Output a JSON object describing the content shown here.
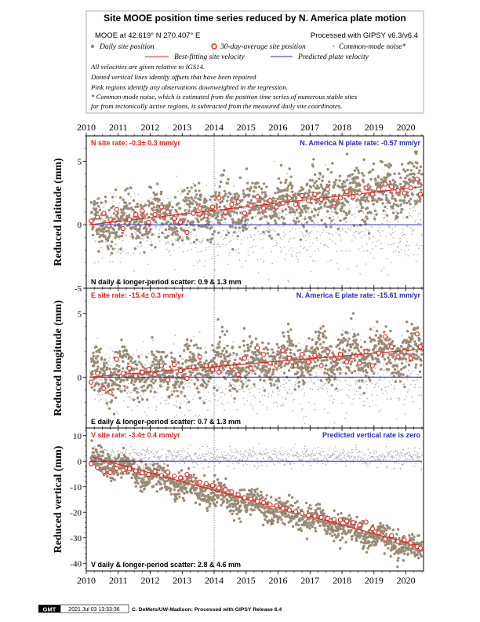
{
  "page": {
    "title": "Site MOOE position time series reduced by N. America plate motion",
    "site_line": "MOOE at 42.619° N 270.407° E",
    "processed_line": "Processed with GIPSY v6.3/v6.4",
    "legend": {
      "daily": "Daily site position",
      "avg30": "30-day-average site position",
      "cm_noise": "Common-mode noise*",
      "best_fit": "Best-fitting site velocity",
      "predicted": "Predicted plate velocity"
    },
    "notes": [
      "All velocities are given relative to IGS14.",
      "Dotted vertical lines identify offsets that have been repaired",
      "Pink regions identify any observations downweighted in the regression.",
      "* Common-mode noise, which is estimated from the position time series of numerous stable sites",
      "far from tectonically active regions, is subtracted from the measured daily site coordinates."
    ],
    "footer": {
      "gmt_logo": "GMT",
      "timestamp": "2021 Jul 03 13:33:36",
      "credit": "C. DeMets/UW-Madison: Processed with GIPSY Release 6.4"
    },
    "colors": {
      "daily": "#9a8a74",
      "avg30": "#e8231e",
      "best_fit": "#e8231e",
      "predicted": "#2929c8",
      "cm_noise": "#b0b0b0"
    }
  },
  "chart_data": [
    {
      "type": "scatter",
      "ylabel": "Reduced latitude (mm)",
      "x_ticks": [
        2010,
        2011,
        2012,
        2013,
        2014,
        2015,
        2016,
        2017,
        2018,
        2019,
        2020
      ],
      "xlim": [
        2010.0,
        2020.55
      ],
      "ylim": [
        -5,
        7
      ],
      "y_ticks": [
        -5,
        0,
        5
      ],
      "offset_line_x": 2014.0,
      "rate_label": "N site rate:  -0.3± 0.3 mm/yr",
      "plate_label": "N. America N plate rate:  -0.57 mm/yr",
      "scatter_label": "N daily & longer-period scatter:   0.9 &   1.3 mm",
      "best_fit": {
        "x": [
          2010.1,
          2020.5
        ],
        "y": [
          0.0,
          3.0
        ]
      },
      "predicted": {
        "x": [
          2010.1,
          2020.5
        ],
        "y": [
          0.0,
          0.0
        ]
      },
      "avg30": {
        "x": [
          2010.15,
          2010.35,
          2010.55,
          2010.75,
          2010.95,
          2011.15,
          2011.35,
          2011.55,
          2011.75,
          2011.95,
          2012.15,
          2012.35,
          2012.55,
          2012.75,
          2012.95,
          2013.15,
          2013.35,
          2013.55,
          2013.75,
          2013.95,
          2014.15,
          2014.35,
          2014.55,
          2014.75,
          2014.95,
          2015.15,
          2015.35,
          2015.55,
          2015.75,
          2015.95,
          2016.15,
          2016.35,
          2016.55,
          2016.75,
          2016.95,
          2017.15,
          2017.35,
          2017.55,
          2017.75,
          2017.95,
          2018.15,
          2018.35,
          2018.55,
          2018.75,
          2018.95,
          2019.15,
          2019.35,
          2019.55,
          2019.75,
          2019.95,
          2020.15,
          2020.35,
          2020.45
        ],
        "y": [
          0.3,
          0.6,
          0.9,
          0.4,
          1.2,
          -0.3,
          0.4,
          0.8,
          1.1,
          0.2,
          0.8,
          1.4,
          1.0,
          0.5,
          0.2,
          -0.6,
          0.9,
          1.3,
          0.7,
          1.4,
          2.1,
          1.0,
          1.6,
          1.8,
          0.9,
          1.5,
          2.2,
          1.3,
          1.9,
          1.4,
          1.7,
          2.1,
          1.6,
          2.3,
          1.9,
          2.4,
          2.0,
          2.8,
          1.7,
          2.1,
          2.6,
          2.2,
          2.5,
          2.9,
          2.4,
          2.8,
          3.2,
          3.0,
          2.7,
          2.5,
          2.9,
          3.6,
          2.4
        ]
      },
      "daily_model": {
        "a": 0.0,
        "b": 0.288,
        "sd": 1.0,
        "seasonal": 0.5,
        "seed": 11
      },
      "cm_model": {
        "a": -0.3,
        "b": 0.0,
        "sd": 1.6,
        "seed": 21
      }
    },
    {
      "type": "scatter",
      "ylabel": "Reduced longitude (mm)",
      "x_ticks": [
        2010,
        2011,
        2012,
        2013,
        2014,
        2015,
        2016,
        2017,
        2018,
        2019,
        2020
      ],
      "xlim": [
        2010.0,
        2020.55
      ],
      "ylim": [
        -4,
        7
      ],
      "y_ticks": [
        0,
        5
      ],
      "offset_line_x": 2014.0,
      "rate_label": "E site rate:  -15.4± 0.3 mm/yr",
      "plate_label": "N. America E plate rate:  -15.61 mm/yr",
      "scatter_label": "E daily & longer-period scatter:   0.7 &   1.3 mm",
      "best_fit": {
        "x": [
          2010.1,
          2020.5
        ],
        "y": [
          0.0,
          2.2
        ]
      },
      "predicted": {
        "x": [
          2010.1,
          2020.5
        ],
        "y": [
          0.0,
          0.0
        ]
      },
      "avg30": {
        "x": [
          2010.15,
          2010.35,
          2010.55,
          2010.75,
          2010.95,
          2011.15,
          2011.35,
          2011.55,
          2011.75,
          2011.95,
          2012.15,
          2012.35,
          2012.55,
          2012.75,
          2012.95,
          2013.15,
          2013.35,
          2013.55,
          2013.75,
          2013.95,
          2014.15,
          2014.35,
          2014.55,
          2014.75,
          2014.95,
          2015.15,
          2015.35,
          2015.55,
          2015.75,
          2015.95,
          2016.15,
          2016.35,
          2016.55,
          2016.75,
          2016.95,
          2017.15,
          2017.35,
          2017.55,
          2017.75,
          2017.95,
          2018.15,
          2018.35,
          2018.55,
          2018.75,
          2018.95,
          2019.15,
          2019.35,
          2019.55,
          2019.75,
          2019.95,
          2020.15,
          2020.35,
          2020.45
        ],
        "y": [
          -0.4,
          0.3,
          -0.9,
          -1.2,
          1.4,
          0.3,
          0.7,
          0.1,
          0.4,
          0.6,
          0.2,
          0.9,
          -0.2,
          1.0,
          0.5,
          -0.1,
          0.8,
          1.6,
          0.9,
          0.6,
          0.4,
          1.1,
          0.8,
          0.2,
          1.5,
          0.7,
          2.3,
          1.8,
          1.1,
          0.9,
          2.1,
          1.5,
          0.9,
          1.8,
          1.2,
          1.7,
          0.9,
          2.0,
          1.4,
          1.8,
          1.2,
          1.6,
          1.1,
          2.0,
          0.9,
          1.9,
          3.2,
          2.4,
          1.6,
          2.0,
          1.5,
          3.4,
          2.4
        ]
      },
      "daily_model": {
        "a": 0.0,
        "b": 0.212,
        "sd": 0.9,
        "seasonal": 0.6,
        "seed": 33
      },
      "cm_model": {
        "a": -0.5,
        "b": 0.05,
        "sd": 1.5,
        "seed": 44
      }
    },
    {
      "type": "scatter",
      "ylabel": "Reduced vertical (mm)",
      "x_ticks": [
        2010,
        2011,
        2012,
        2013,
        2014,
        2015,
        2016,
        2017,
        2018,
        2019,
        2020
      ],
      "x_tick_labels_bottom": [
        "2010",
        "2011",
        "2012",
        "2013",
        "2014",
        "2015",
        "2016",
        "2017",
        "2018",
        "2019",
        "2020"
      ],
      "xlim": [
        2010.0,
        2020.55
      ],
      "ylim": [
        -43,
        13
      ],
      "y_ticks": [
        -40,
        -30,
        -20,
        -10,
        0,
        10
      ],
      "offset_line_x": 2014.0,
      "rate_label": "V site rate:  -3.4± 0.4 mm/yr",
      "plate_label": "Predicted vertical rate is zero",
      "scatter_label": "V daily & longer-period scatter:   2.8 &   4.6 mm",
      "best_fit": {
        "x": [
          2010.2,
          2020.5
        ],
        "y": [
          1.5,
          -33.5
        ]
      },
      "predicted": {
        "x": [
          2010.1,
          2020.5
        ],
        "y": [
          0.0,
          0.0
        ]
      },
      "avg30": {
        "x": [
          2010.15,
          2010.35,
          2010.55,
          2010.75,
          2010.95,
          2011.15,
          2011.35,
          2011.55,
          2011.75,
          2011.95,
          2012.15,
          2012.35,
          2012.55,
          2012.75,
          2012.95,
          2013.15,
          2013.35,
          2013.55,
          2013.75,
          2013.95,
          2014.15,
          2014.35,
          2014.55,
          2014.75,
          2014.95,
          2015.15,
          2015.35,
          2015.55,
          2015.75,
          2015.95,
          2016.15,
          2016.35,
          2016.55,
          2016.75,
          2016.95,
          2017.15,
          2017.35,
          2017.55,
          2017.75,
          2017.95,
          2018.15,
          2018.35,
          2018.55,
          2018.75,
          2018.95,
          2019.15,
          2019.35,
          2019.55,
          2019.75,
          2019.95,
          2020.15,
          2020.35,
          2020.45
        ],
        "y": [
          -1.0,
          -2.5,
          -4.0,
          -4.5,
          -2.8,
          -3.5,
          -3.0,
          -3.8,
          -4.6,
          -5.2,
          -4.0,
          -5.5,
          -4.3,
          -5.8,
          -6.5,
          -5.2,
          -7.0,
          -8.2,
          -8.8,
          -9.5,
          -10.5,
          -11.2,
          -12.0,
          -13.0,
          -14.3,
          -14.8,
          -15.8,
          -16.2,
          -17.0,
          -17.5,
          -18.5,
          -19.2,
          -19.8,
          -20.5,
          -21.2,
          -21.5,
          -22.0,
          -22.4,
          -22.8,
          -23.0,
          -23.5,
          -24.0,
          -25.0,
          -23.8,
          -26.5,
          -28.0,
          -30.5,
          -29.2,
          -31.5,
          -30.8,
          -32.0,
          -33.5,
          -34.0
        ]
      },
      "daily_model": {
        "a": 1.0,
        "b": -3.4,
        "sd": 2.6,
        "seasonal": 1.6,
        "seed": 55
      },
      "cm_model": {
        "a": 1.5,
        "b": 0.0,
        "sd": 1.8,
        "seed": 66
      }
    }
  ]
}
